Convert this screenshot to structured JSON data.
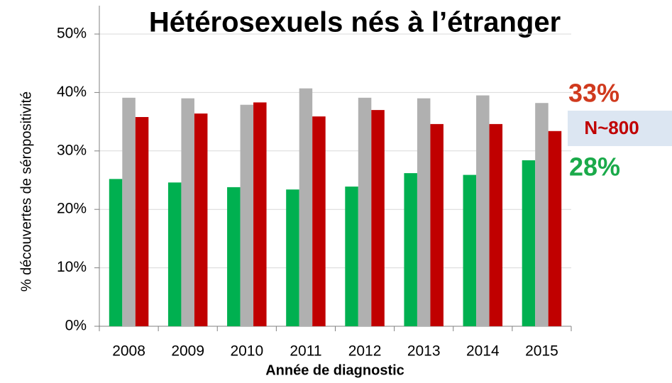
{
  "chart_data": {
    "type": "bar",
    "title": "Hétérosexuels nés à l’étranger",
    "y_label": "% découvertes de séropositivité",
    "x_label": "Année de diagnostic",
    "categories": [
      "2008",
      "2009",
      "2010",
      "2011",
      "2012",
      "2013",
      "2014",
      "2015"
    ],
    "series": [
      {
        "color": "#00b050",
        "values": [
          25.2,
          24.6,
          23.8,
          23.4,
          23.9,
          26.2,
          25.9,
          28.4
        ]
      },
      {
        "color": "#b0b0b0",
        "values": [
          39.1,
          39.0,
          37.9,
          40.7,
          39.1,
          39.0,
          39.5,
          38.2
        ]
      },
      {
        "color": "#c00000",
        "values": [
          35.8,
          36.4,
          38.3,
          35.9,
          37.0,
          34.6,
          34.6,
          33.4
        ]
      }
    ],
    "ylim": [
      0,
      50
    ],
    "yticks": [
      {
        "value": 0,
        "label": "0%"
      },
      {
        "value": 10,
        "label": "10%"
      },
      {
        "value": 20,
        "label": "20%"
      },
      {
        "value": 30,
        "label": "30%"
      },
      {
        "value": 40,
        "label": "40%"
      },
      {
        "value": 50,
        "label": "50%"
      }
    ],
    "grid": true,
    "annotations": [
      {
        "text": "33%",
        "color": "#d03a1e"
      },
      {
        "text": "N~800",
        "color": "#c00000"
      },
      {
        "text": "28%",
        "color": "#1aaa4a"
      }
    ]
  }
}
